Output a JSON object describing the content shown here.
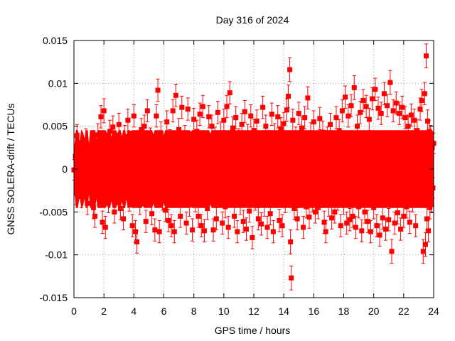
{
  "chart_data": {
    "type": "scatter",
    "title": "Day 316 of 2024",
    "xlabel": "GPS time / hours",
    "ylabel": "GNSS SOLERA-drift / TECUs",
    "xlim": [
      0,
      24
    ],
    "ylim": [
      -0.015,
      0.015
    ],
    "x_ticks": [
      0,
      2,
      4,
      6,
      8,
      10,
      12,
      14,
      16,
      18,
      20,
      22,
      24
    ],
    "x_tick_labels": [
      "0",
      "2",
      "4",
      "6",
      "8",
      "10",
      "12",
      "14",
      "16",
      "18",
      "20",
      "22",
      "24"
    ],
    "y_ticks": [
      -0.015,
      -0.01,
      -0.005,
      0,
      0.005,
      0.01,
      0.015
    ],
    "y_tick_labels": [
      "-0.015",
      "-0.01",
      "-0.005",
      "0",
      "0.005",
      "0.01",
      "0.015"
    ],
    "grid": true,
    "marker": "square",
    "error_bars": true,
    "series_color": "#ff0000",
    "points": [
      [
        0.0,
        -0.0001,
        0.0012
      ],
      [
        0.1,
        0.0015,
        0.0013
      ],
      [
        0.15,
        -0.0028,
        0.0013
      ],
      [
        0.2,
        0.0039,
        0.0013
      ],
      [
        0.25,
        0.003,
        0.0012
      ],
      [
        0.3,
        -0.0018,
        0.0013
      ],
      [
        0.4,
        0.001,
        0.0012
      ],
      [
        0.5,
        -0.0032,
        0.0013
      ],
      [
        0.6,
        0.0022,
        0.0012
      ],
      [
        0.7,
        -0.0012,
        0.0012
      ],
      [
        0.8,
        0.0034,
        0.0013
      ],
      [
        0.9,
        -0.004,
        0.0013
      ],
      [
        1.0,
        0.0005,
        0.0012
      ],
      [
        1.1,
        -0.0025,
        0.0013
      ],
      [
        1.2,
        0.0028,
        0.0012
      ],
      [
        1.3,
        -0.0045,
        0.0013
      ],
      [
        1.4,
        -0.0055,
        0.0013
      ],
      [
        1.5,
        0.0012,
        0.0012
      ],
      [
        1.6,
        0.004,
        0.0013
      ],
      [
        1.7,
        -0.003,
        0.0013
      ],
      [
        1.8,
        0.0061,
        0.0013
      ],
      [
        1.9,
        -0.0062,
        0.0013
      ],
      [
        2.0,
        0.0068,
        0.0014
      ],
      [
        2.1,
        -0.0068,
        0.0013
      ],
      [
        2.2,
        0.0021,
        0.0012
      ],
      [
        2.3,
        -0.0038,
        0.0013
      ],
      [
        2.4,
        0.0044,
        0.0013
      ],
      [
        2.5,
        -0.0015,
        0.0012
      ],
      [
        2.6,
        0.0049,
        0.0013
      ],
      [
        2.7,
        -0.005,
        0.0013
      ],
      [
        2.8,
        0.003,
        0.0012
      ],
      [
        2.9,
        -0.002,
        0.0012
      ],
      [
        3.0,
        0.0052,
        0.0013
      ],
      [
        3.1,
        -0.0046,
        0.0013
      ],
      [
        3.2,
        0.0016,
        0.0012
      ],
      [
        3.3,
        -0.0058,
        0.0013
      ],
      [
        3.4,
        0.0038,
        0.0013
      ],
      [
        3.5,
        -0.0012,
        0.0012
      ],
      [
        3.6,
        0.0057,
        0.0013
      ],
      [
        3.7,
        -0.0036,
        0.0013
      ],
      [
        3.8,
        0.0024,
        0.0012
      ],
      [
        3.9,
        -0.0066,
        0.0013
      ],
      [
        4.0,
        0.0062,
        0.0013
      ],
      [
        4.1,
        -0.0073,
        0.0013
      ],
      [
        4.2,
        -0.0085,
        0.0013
      ],
      [
        4.3,
        0.0031,
        0.0012
      ],
      [
        4.4,
        -0.004,
        0.0013
      ],
      [
        4.5,
        0.0046,
        0.0013
      ],
      [
        4.6,
        -0.0022,
        0.0012
      ],
      [
        4.7,
        0.005,
        0.0013
      ],
      [
        4.8,
        -0.0061,
        0.0013
      ],
      [
        4.9,
        0.0068,
        0.0013
      ],
      [
        5.0,
        -0.0028,
        0.0012
      ],
      [
        5.1,
        0.0035,
        0.0013
      ],
      [
        5.2,
        -0.0052,
        0.0013
      ],
      [
        5.3,
        0.0019,
        0.0012
      ],
      [
        5.4,
        -0.0071,
        0.0013
      ],
      [
        5.5,
        0.0062,
        0.0013
      ],
      [
        5.6,
        0.0092,
        0.0013
      ],
      [
        5.7,
        -0.0073,
        0.0013
      ],
      [
        5.8,
        0.0042,
        0.0013
      ],
      [
        5.9,
        -0.0035,
        0.0013
      ],
      [
        6.0,
        0.0018,
        0.0012
      ],
      [
        6.1,
        -0.0048,
        0.0013
      ],
      [
        6.2,
        0.0055,
        0.0013
      ],
      [
        6.3,
        -0.006,
        0.0013
      ],
      [
        6.4,
        0.0034,
        0.0012
      ],
      [
        6.5,
        -0.0066,
        0.0013
      ],
      [
        6.6,
        0.0068,
        0.0013
      ],
      [
        6.7,
        -0.0073,
        0.0013
      ],
      [
        6.8,
        0.0086,
        0.0013
      ],
      [
        6.9,
        -0.0031,
        0.0012
      ],
      [
        7.0,
        0.0046,
        0.0013
      ],
      [
        7.1,
        -0.0055,
        0.0013
      ],
      [
        7.2,
        0.0072,
        0.0013
      ],
      [
        7.3,
        -0.0025,
        0.0012
      ],
      [
        7.4,
        0.0038,
        0.0013
      ],
      [
        7.5,
        -0.0063,
        0.0013
      ],
      [
        7.6,
        0.007,
        0.0013
      ],
      [
        7.7,
        -0.0042,
        0.0013
      ],
      [
        7.8,
        0.0023,
        0.0012
      ],
      [
        7.9,
        -0.0071,
        0.0013
      ],
      [
        8.0,
        0.0058,
        0.0013
      ],
      [
        8.1,
        -0.0037,
        0.0013
      ],
      [
        8.2,
        0.0044,
        0.0013
      ],
      [
        8.3,
        -0.0055,
        0.0013
      ],
      [
        8.4,
        0.0064,
        0.0013
      ],
      [
        8.5,
        -0.0066,
        0.0013
      ],
      [
        8.6,
        0.0073,
        0.0013
      ],
      [
        8.7,
        -0.0072,
        0.0013
      ],
      [
        8.8,
        0.003,
        0.0012
      ],
      [
        8.9,
        -0.0046,
        0.0013
      ],
      [
        9.0,
        0.0061,
        0.0013
      ],
      [
        9.1,
        -0.002,
        0.0012
      ],
      [
        9.2,
        0.005,
        0.0013
      ],
      [
        9.3,
        -0.0071,
        0.0013
      ],
      [
        9.4,
        0.0036,
        0.0013
      ],
      [
        9.5,
        -0.0058,
        0.0013
      ],
      [
        9.6,
        0.0066,
        0.0013
      ],
      [
        9.7,
        -0.003,
        0.0012
      ],
      [
        9.8,
        0.0042,
        0.0013
      ],
      [
        9.9,
        -0.0063,
        0.0013
      ],
      [
        10.0,
        0.0057,
        0.0013
      ],
      [
        10.1,
        -0.0044,
        0.0013
      ],
      [
        10.2,
        0.0073,
        0.0013
      ],
      [
        10.3,
        -0.0068,
        0.0013
      ],
      [
        10.4,
        0.0089,
        0.0013
      ],
      [
        10.5,
        -0.0026,
        0.0012
      ],
      [
        10.6,
        0.0048,
        0.0013
      ],
      [
        10.7,
        -0.0055,
        0.0013
      ],
      [
        10.8,
        0.006,
        0.0013
      ],
      [
        10.9,
        -0.0073,
        0.0013
      ],
      [
        11.0,
        0.0035,
        0.0012
      ],
      [
        11.1,
        -0.004,
        0.0013
      ],
      [
        11.2,
        0.0052,
        0.0013
      ],
      [
        11.3,
        -0.0061,
        0.0013
      ],
      [
        11.4,
        0.0067,
        0.0013
      ],
      [
        11.5,
        -0.007,
        0.0013
      ],
      [
        11.6,
        0.0039,
        0.0013
      ],
      [
        11.7,
        -0.0049,
        0.0013
      ],
      [
        11.8,
        0.0062,
        0.0013
      ],
      [
        11.9,
        -0.008,
        0.0013
      ],
      [
        12.0,
        0.0045,
        0.0013
      ],
      [
        12.1,
        -0.0035,
        0.0013
      ],
      [
        12.2,
        0.0056,
        0.0013
      ],
      [
        12.3,
        -0.0058,
        0.0013
      ],
      [
        12.4,
        0.0028,
        0.0012
      ],
      [
        12.5,
        -0.0064,
        0.0013
      ],
      [
        12.6,
        0.0072,
        0.0013
      ],
      [
        12.7,
        -0.0042,
        0.0013
      ],
      [
        12.8,
        0.005,
        0.0013
      ],
      [
        12.9,
        -0.0068,
        0.0013
      ],
      [
        13.0,
        0.0033,
        0.0012
      ],
      [
        13.1,
        -0.0052,
        0.0013
      ],
      [
        13.2,
        0.0064,
        0.0013
      ],
      [
        13.3,
        -0.0073,
        0.0013
      ],
      [
        13.4,
        0.004,
        0.0013
      ],
      [
        13.5,
        -0.0028,
        0.0012
      ],
      [
        13.6,
        0.0061,
        0.0013
      ],
      [
        13.7,
        -0.006,
        0.0013
      ],
      [
        13.8,
        0.0047,
        0.0013
      ],
      [
        13.9,
        -0.0066,
        0.0013
      ],
      [
        14.0,
        0.0053,
        0.0013
      ],
      [
        14.1,
        -0.0038,
        0.0013
      ],
      [
        14.2,
        0.0069,
        0.0013
      ],
      [
        14.3,
        0.0085,
        0.0013
      ],
      [
        14.4,
        0.0116,
        0.0014
      ],
      [
        14.45,
        -0.0085,
        0.0014
      ],
      [
        14.5,
        -0.0127,
        0.0014
      ],
      [
        14.6,
        0.0057,
        0.0013
      ],
      [
        14.7,
        -0.0046,
        0.0013
      ],
      [
        14.8,
        0.0036,
        0.0013
      ],
      [
        14.9,
        -0.0058,
        0.0013
      ],
      [
        15.0,
        0.0065,
        0.0013
      ],
      [
        15.1,
        -0.0031,
        0.0012
      ],
      [
        15.2,
        0.0048,
        0.0013
      ],
      [
        15.3,
        -0.0068,
        0.0013
      ],
      [
        15.4,
        0.006,
        0.0013
      ],
      [
        15.5,
        -0.0044,
        0.0013
      ],
      [
        15.6,
        0.0083,
        0.0013
      ],
      [
        15.7,
        -0.0056,
        0.0013
      ],
      [
        15.8,
        0.0041,
        0.0013
      ],
      [
        15.9,
        -0.0037,
        0.0013
      ],
      [
        16.0,
        0.0055,
        0.0013
      ],
      [
        16.1,
        -0.005,
        0.0013
      ],
      [
        16.2,
        0.003,
        0.0012
      ],
      [
        16.3,
        -0.0045,
        0.0013
      ],
      [
        16.4,
        0.0059,
        0.0013
      ],
      [
        16.5,
        -0.0025,
        0.0012
      ],
      [
        16.6,
        0.0043,
        0.0013
      ],
      [
        16.7,
        -0.0062,
        0.0013
      ],
      [
        16.8,
        -0.0073,
        0.0013
      ],
      [
        16.9,
        0.0036,
        0.0013
      ],
      [
        17.0,
        -0.0042,
        0.0013
      ],
      [
        17.1,
        0.0052,
        0.0013
      ],
      [
        17.2,
        -0.0057,
        0.0013
      ],
      [
        17.3,
        0.0028,
        0.0012
      ],
      [
        17.4,
        -0.005,
        0.0013
      ],
      [
        17.5,
        0.006,
        0.0013
      ],
      [
        17.6,
        -0.0035,
        0.0013
      ],
      [
        17.7,
        0.0045,
        0.0013
      ],
      [
        17.8,
        -0.0066,
        0.0013
      ],
      [
        17.9,
        0.0068,
        0.0013
      ],
      [
        18.0,
        -0.004,
        0.0013
      ],
      [
        18.1,
        0.0084,
        0.0013
      ],
      [
        18.2,
        -0.0063,
        0.0013
      ],
      [
        18.3,
        0.0062,
        0.0013
      ],
      [
        18.4,
        -0.0059,
        0.0013
      ],
      [
        18.5,
        0.0074,
        0.0013
      ],
      [
        18.6,
        -0.0055,
        0.0013
      ],
      [
        18.7,
        0.0095,
        0.0014
      ],
      [
        18.8,
        -0.0068,
        0.0013
      ],
      [
        18.9,
        0.005,
        0.0013
      ],
      [
        19.0,
        -0.0044,
        0.0013
      ],
      [
        19.1,
        0.0066,
        0.0013
      ],
      [
        19.2,
        -0.0072,
        0.0013
      ],
      [
        19.3,
        0.008,
        0.0013
      ],
      [
        19.4,
        -0.005,
        0.0013
      ],
      [
        19.5,
        0.0073,
        0.0013
      ],
      [
        19.6,
        -0.0061,
        0.0013
      ],
      [
        19.7,
        0.0058,
        0.0013
      ],
      [
        19.8,
        -0.0073,
        0.0013
      ],
      [
        19.9,
        0.0082,
        0.0013
      ],
      [
        20.0,
        -0.0045,
        0.0013
      ],
      [
        20.1,
        0.0093,
        0.0013
      ],
      [
        20.2,
        -0.0066,
        0.0013
      ],
      [
        20.3,
        0.0071,
        0.0013
      ],
      [
        20.4,
        -0.0077,
        0.0013
      ],
      [
        20.5,
        0.0065,
        0.0013
      ],
      [
        20.6,
        -0.0057,
        0.0013
      ],
      [
        20.7,
        0.0088,
        0.0013
      ],
      [
        20.8,
        -0.007,
        0.0013
      ],
      [
        20.9,
        0.0074,
        0.0013
      ],
      [
        21.0,
        -0.0059,
        0.0013
      ],
      [
        21.1,
        0.0101,
        0.0014
      ],
      [
        21.2,
        -0.0096,
        0.0014
      ],
      [
        21.3,
        0.0068,
        0.0013
      ],
      [
        21.4,
        -0.0063,
        0.0013
      ],
      [
        21.5,
        0.0077,
        0.0013
      ],
      [
        21.6,
        -0.0051,
        0.0013
      ],
      [
        21.7,
        0.0065,
        0.0013
      ],
      [
        21.8,
        -0.007,
        0.0013
      ],
      [
        21.9,
        0.0072,
        0.0013
      ],
      [
        22.0,
        -0.0055,
        0.0013
      ],
      [
        22.1,
        0.006,
        0.0013
      ],
      [
        22.2,
        -0.0044,
        0.0013
      ],
      [
        22.3,
        0.005,
        0.0013
      ],
      [
        22.4,
        -0.0062,
        0.0013
      ],
      [
        22.5,
        0.0063,
        0.0013
      ],
      [
        22.6,
        -0.0037,
        0.0013
      ],
      [
        22.7,
        0.0057,
        0.0013
      ],
      [
        22.8,
        -0.0066,
        0.0013
      ],
      [
        22.9,
        0.0045,
        0.0013
      ],
      [
        23.0,
        -0.003,
        0.0012
      ],
      [
        23.1,
        0.007,
        0.0013
      ],
      [
        23.2,
        0.008,
        0.0013
      ],
      [
        23.3,
        -0.0096,
        0.0014
      ],
      [
        23.4,
        0.0088,
        0.0013
      ],
      [
        23.45,
        -0.0088,
        0.0014
      ],
      [
        23.5,
        0.0132,
        0.0014
      ],
      [
        23.55,
        -0.0058,
        0.0013
      ],
      [
        23.6,
        0.0056,
        0.0013
      ],
      [
        23.65,
        -0.0072,
        0.0013
      ],
      [
        23.7,
        0.0044,
        0.0013
      ],
      [
        23.75,
        -0.0045,
        0.0013
      ],
      [
        23.8,
        0.0038,
        0.0013
      ],
      [
        23.85,
        -0.0038,
        0.0013
      ],
      [
        23.9,
        0.0025,
        0.0012
      ],
      [
        23.95,
        -0.0022,
        0.0012
      ],
      [
        24.0,
        0.003,
        0.0012
      ]
    ]
  }
}
